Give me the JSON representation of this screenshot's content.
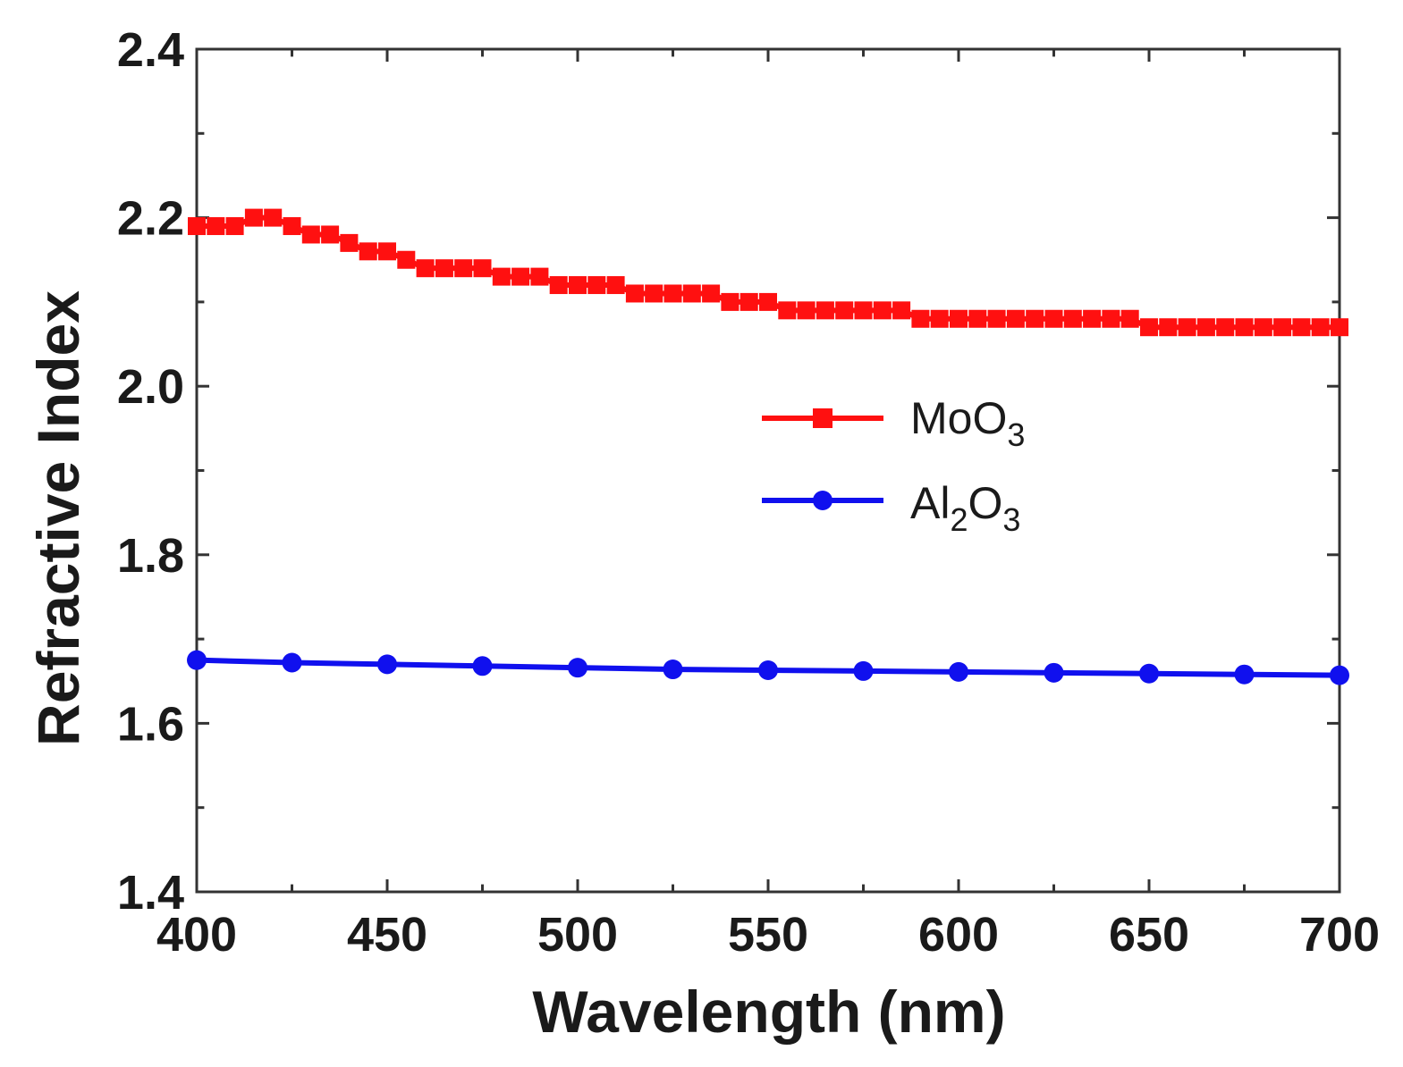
{
  "chart_data": {
    "type": "line",
    "xlabel": "Wavelength (nm)",
    "ylabel": "Refractive Index",
    "xlim": [
      400,
      700
    ],
    "ylim": [
      1.4,
      2.4
    ],
    "xticks": [
      400,
      450,
      500,
      550,
      600,
      650,
      700
    ],
    "yticks": [
      1.4,
      1.6,
      1.8,
      2.0,
      2.2,
      2.4
    ],
    "ytick_labels": [
      "1.4",
      "1.6",
      "1.8",
      "2.0",
      "2.2",
      "2.4"
    ],
    "legend_position": "center-right",
    "series": [
      {
        "name": "MoO3",
        "label_main": "MoO",
        "label_sub": "3",
        "color": "#ff1010",
        "marker": "square",
        "x": [
          400,
          405,
          410,
          415,
          420,
          425,
          430,
          435,
          440,
          445,
          450,
          455,
          460,
          465,
          470,
          475,
          480,
          485,
          490,
          495,
          500,
          505,
          510,
          515,
          520,
          525,
          530,
          535,
          540,
          545,
          550,
          555,
          560,
          565,
          570,
          575,
          580,
          585,
          590,
          595,
          600,
          605,
          610,
          615,
          620,
          625,
          630,
          635,
          640,
          645,
          650,
          655,
          660,
          665,
          670,
          675,
          680,
          685,
          690,
          695,
          700
        ],
        "y": [
          2.19,
          2.19,
          2.19,
          2.2,
          2.2,
          2.19,
          2.18,
          2.18,
          2.17,
          2.16,
          2.16,
          2.15,
          2.14,
          2.14,
          2.14,
          2.14,
          2.13,
          2.13,
          2.13,
          2.12,
          2.12,
          2.12,
          2.12,
          2.11,
          2.11,
          2.11,
          2.11,
          2.11,
          2.1,
          2.1,
          2.1,
          2.09,
          2.09,
          2.09,
          2.09,
          2.09,
          2.09,
          2.09,
          2.08,
          2.08,
          2.08,
          2.08,
          2.08,
          2.08,
          2.08,
          2.08,
          2.08,
          2.08,
          2.08,
          2.08,
          2.07,
          2.07,
          2.07,
          2.07,
          2.07,
          2.07,
          2.07,
          2.07,
          2.07,
          2.07,
          2.07
        ]
      },
      {
        "name": "Al2O3",
        "label_main": "Al",
        "label_sub1": "2",
        "label_mid": "O",
        "label_sub2": "3",
        "color": "#1010ee",
        "marker": "circle",
        "x": [
          400,
          425,
          450,
          475,
          500,
          525,
          550,
          575,
          600,
          625,
          650,
          675,
          700
        ],
        "y": [
          1.675,
          1.672,
          1.67,
          1.668,
          1.666,
          1.664,
          1.663,
          1.662,
          1.661,
          1.66,
          1.659,
          1.658,
          1.657
        ]
      }
    ]
  }
}
